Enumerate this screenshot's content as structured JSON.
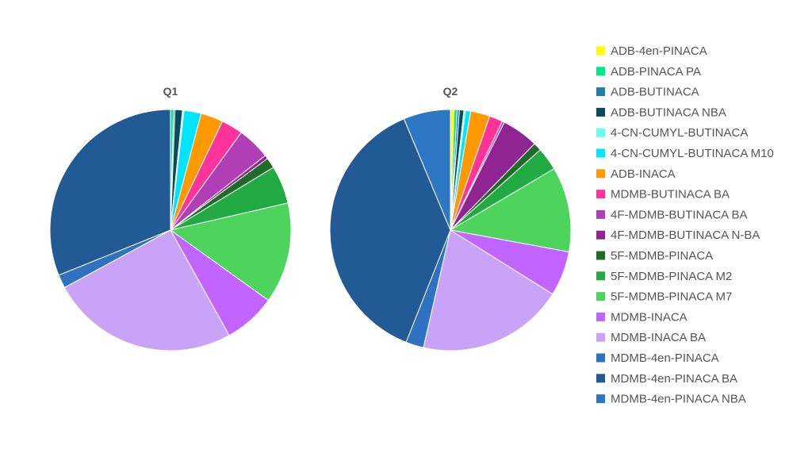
{
  "chart_data": {
    "type": "pie",
    "categories": [
      "ADB-4en-PINACA",
      "ADB-PINACA PA",
      "ADB-BUTINACA",
      "ADB-BUTINACA NBA",
      "4-CN-CUMYL-BUTINACA",
      "4-CN-CUMYL-BUTINACA M10",
      "ADB-INACA",
      "MDMB-BUTINACA BA",
      "4F-MDMB-BUTINACA BA",
      "4F-MDMB-BUTINACA N-BA",
      "5F-MDMB-PINACA",
      "5F-MDMB-PINACA M2",
      "5F-MDMB-PINACA M7",
      "MDMB-INACA",
      "MDMB-INACA BA",
      "MDMB-4en-PINACA",
      "MDMB-4en-PINACA BA",
      "MDMB-4en-PINACA NBA"
    ],
    "colors": [
      "#ffff00",
      "#00e68a",
      "#1f7fa6",
      "#0b4a5c",
      "#66ffee",
      "#00e5ff",
      "#ff9900",
      "#ff3399",
      "#b03fb5",
      "#8e2590",
      "#1e6b2a",
      "#22aa44",
      "#4dd45c",
      "#c264ff",
      "#c9a3f7",
      "#2f72c2",
      "#215a94",
      "#2d78c4"
    ],
    "series": [
      {
        "name": "Q1",
        "values": [
          0.0,
          0.4,
          0.2,
          1.0,
          0.2,
          2.3,
          3.0,
          2.9,
          4.4,
          0.5,
          1.4,
          5.1,
          13.5,
          7.0,
          25.2,
          1.8,
          31.1,
          0.0
        ]
      },
      {
        "name": "Q2",
        "values": [
          0.5,
          0.4,
          0.3,
          0.6,
          0.2,
          0.7,
          2.6,
          1.8,
          0.3,
          4.9,
          1.1,
          3.1,
          11.4,
          6.0,
          19.7,
          2.4,
          37.7,
          6.3
        ]
      }
    ],
    "legend_position": "right"
  }
}
